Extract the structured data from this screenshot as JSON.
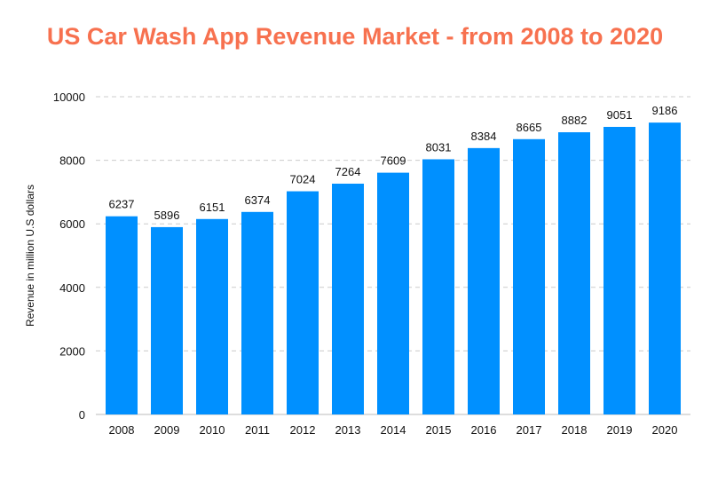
{
  "chart_data": {
    "type": "bar",
    "title": "US Car Wash App Revenue Market - from 2008 to 2020",
    "xlabel": "",
    "ylabel": "Revenue in million U.S dollars",
    "categories": [
      "2008",
      "2009",
      "2010",
      "2011",
      "2012",
      "2013",
      "2014",
      "2015",
      "2016",
      "2017",
      "2018",
      "2019",
      "2020"
    ],
    "values": [
      6237,
      5896,
      6151,
      6374,
      7024,
      7264,
      7609,
      8031,
      8384,
      8665,
      8882,
      9051,
      9186
    ],
    "ylim": [
      0,
      10000
    ],
    "yticks": [
      0,
      2000,
      4000,
      6000,
      8000,
      10000
    ],
    "grid": true,
    "data_labels": true,
    "colors": {
      "bar": "#0090ff",
      "title": "#f7714f",
      "grid": "#cccccc"
    }
  }
}
